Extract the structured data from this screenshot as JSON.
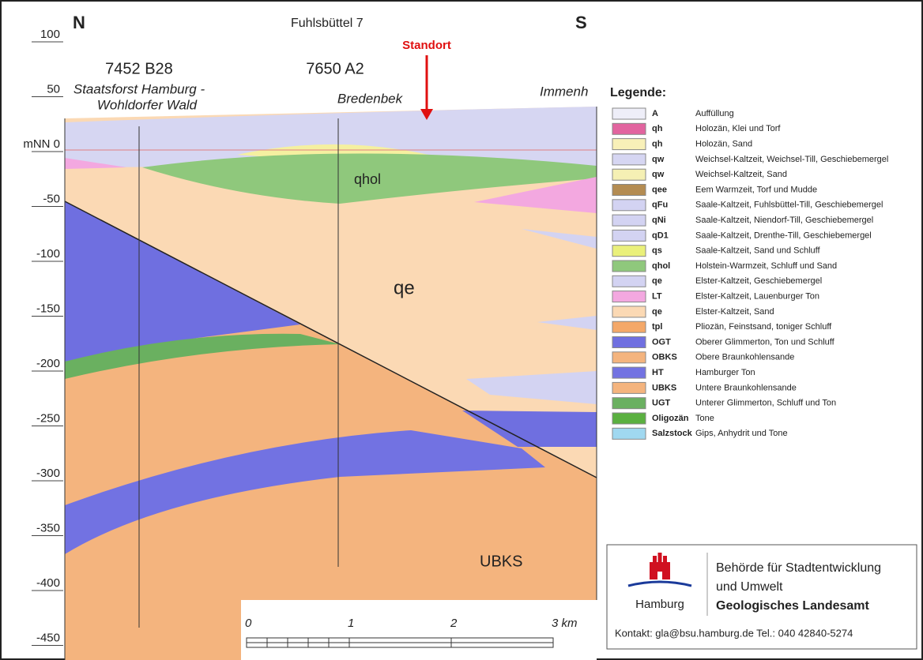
{
  "header": {
    "north": "N",
    "south": "S",
    "section": "Fuhlsbüttel 7",
    "site": "Standort"
  },
  "depth_axis": {
    "labels": [
      "100",
      "50",
      "mNN 0",
      "-50",
      "-100",
      "-150",
      "-200",
      "-250",
      "-300",
      "-350",
      "-400",
      "-450"
    ]
  },
  "boreholes": [
    {
      "id": "7452 B28",
      "name_line1": "Staatsforst Hamburg -",
      "name_line2": "Wohldorfer Wald"
    },
    {
      "id": "7650 A2",
      "name_line1": "Bredenbek"
    }
  ],
  "edge_label": "Immenh",
  "unit_labels": [
    "qhol",
    "qe",
    "UBKS"
  ],
  "scale": {
    "labels": [
      "0",
      "1",
      "2",
      "3 km"
    ]
  },
  "legend": {
    "title": "Legende:",
    "items": [
      {
        "code": "A",
        "desc": "Auffüllung",
        "color": "#eeeef8"
      },
      {
        "code": "qh",
        "desc": "Holozän, Klei und Torf",
        "color": "#e2649f"
      },
      {
        "code": "qh",
        "desc": "Holozän, Sand",
        "color": "#f8f0b8"
      },
      {
        "code": "qw",
        "desc": "Weichsel-Kaltzeit, Weichsel-Till, Geschiebemergel",
        "color": "#d6d6f2"
      },
      {
        "code": "qw",
        "desc": "Weichsel-Kaltzeit, Sand",
        "color": "#f5f0b4"
      },
      {
        "code": "qee",
        "desc": "Eem Warmzeit, Torf und Mudde",
        "color": "#b48c52"
      },
      {
        "code": "qFu",
        "desc": "Saale-Kaltzeit, Fuhlsbüttel-Till, Geschiebemergel",
        "color": "#d3d3f2"
      },
      {
        "code": "qNi",
        "desc": "Saale-Kaltzeit, Niendorf-Till, Geschiebemergel",
        "color": "#d3d3f2"
      },
      {
        "code": "qD1",
        "desc": "Saale-Kaltzeit, Drenthe-Till, Geschiebemergel",
        "color": "#d3d3f2"
      },
      {
        "code": "qs",
        "desc": "Saale-Kaltzeit, Sand und Schluff",
        "color": "#eaf07a"
      },
      {
        "code": "qhol",
        "desc": "Holstein-Warmzeit, Schluff und Sand",
        "color": "#8fc87c"
      },
      {
        "code": "qe",
        "desc": "Elster-Kaltzeit, Geschiebemergel",
        "color": "#d3d3f2"
      },
      {
        "code": "LT",
        "desc": "Elster-Kaltzeit, Lauenburger Ton",
        "color": "#f3a8e0"
      },
      {
        "code": "qe",
        "desc": "Elster-Kaltzeit, Sand",
        "color": "#fbd9b4"
      },
      {
        "code": "tpl",
        "desc": "Pliozän, Feinstsand, toniger Schluff",
        "color": "#f4a868"
      },
      {
        "code": "OGT",
        "desc": "Oberer Glimmerton, Ton und Schluff",
        "color": "#6f6fe0"
      },
      {
        "code": "OBKS",
        "desc": "Obere Braunkohlensande",
        "color": "#f4b47e"
      },
      {
        "code": "HT",
        "desc": "Hamburger Ton",
        "color": "#7272e2"
      },
      {
        "code": "UBKS",
        "desc": "Untere Braunkohlensande",
        "color": "#f4b47e"
      },
      {
        "code": "UGT",
        "desc": "Unterer Glimmerton, Schluff und Ton",
        "color": "#6ab060"
      },
      {
        "code": "Oligozän",
        "desc": "Tone",
        "color": "#5ab040"
      },
      {
        "code": "Salzstock",
        "desc": "Gips, Anhydrit und Tone",
        "color": "#a0d8f0"
      }
    ]
  },
  "agency": {
    "city": "Hamburg",
    "line1": "Behörde für Stadtentwicklung",
    "line2": "und Umwelt",
    "line3": "Geologisches Landesamt",
    "contact": "Kontakt: gla@bsu.hamburg.de  Tel.: 040 42840-5274"
  }
}
